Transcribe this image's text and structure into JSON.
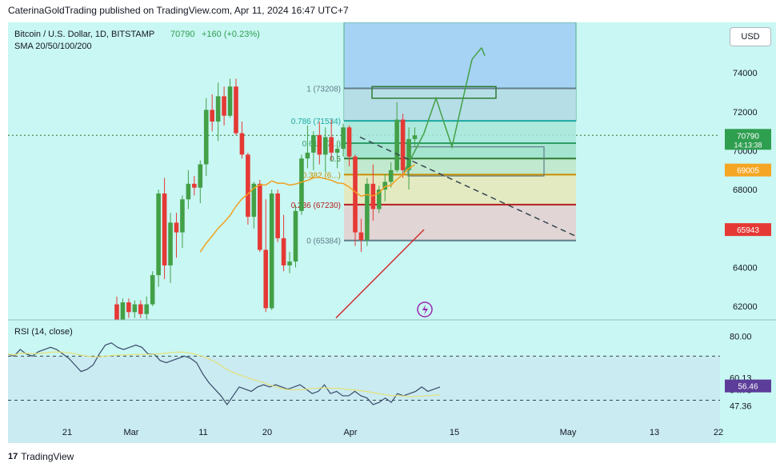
{
  "publisher": "CaterinaGoldTrading published on TradingView.com, Apr 11, 2024 16:47 UTC+7",
  "symbol_info": {
    "title": "Bitcoin / U.S. Dollar, 1D, BITSTAMP",
    "price": "70790",
    "change": "+160 (+0.23%)",
    "indicator": "SMA 20/50/100/200"
  },
  "currency_button": "USD",
  "rsi_title": "RSI (14, close)",
  "footer_brand": "TradingView",
  "footer_logo": "17",
  "colors": {
    "background": "#c9f7f3",
    "up": "#26a69a",
    "candle_up": "#43a047",
    "candle_down": "#e53935",
    "sma_orange": "#f0a020",
    "sma_red": "#d32f2f",
    "rsi_line": "#3a4a6b",
    "rsi_ma": "#e6e07a",
    "fib_green": "#2e9e6a",
    "projection_blue": "#9ecbf5"
  },
  "chart_data": {
    "type": "candlestick",
    "title": "Bitcoin / U.S. Dollar, 1D, BITSTAMP",
    "y_axis_ticks": [
      62000,
      64000,
      66000,
      68000,
      70000,
      72000,
      74000
    ],
    "y_tick_labels": [
      "62000",
      "64000",
      "66000",
      "68000",
      "70000",
      "72000",
      "74000"
    ],
    "ylim": [
      61300,
      76600
    ],
    "x_axis_labels": [
      "21",
      "Mar",
      "11",
      "20",
      "Apr",
      "15",
      "May",
      "13",
      "22"
    ],
    "price_labels": [
      {
        "text": "70790",
        "sub": "14:13:38",
        "value": 70790,
        "color": "#2e9e4f"
      },
      {
        "text": "69005",
        "value": 69005,
        "color": "#f5a623"
      },
      {
        "text": "65943",
        "value": 65943,
        "color": "#e53935"
      }
    ],
    "fib_levels": [
      {
        "label": "1 (73208)",
        "value": 73208
      },
      {
        "label": "0.786 (71534)",
        "value": 71534
      },
      {
        "label": "0.618 (7...)",
        "value": 70390
      },
      {
        "label": "0.5",
        "value": 69600
      },
      {
        "label": "0.382 (6...)",
        "value": 68770
      },
      {
        "label": "0.236 (67230)",
        "value": 67230
      },
      {
        "label": "0 (65384)",
        "value": 65384
      }
    ],
    "candles": [
      {
        "o": 62100,
        "h": 62500,
        "l": 61300,
        "c": 61300
      },
      {
        "o": 61300,
        "h": 62400,
        "l": 61300,
        "c": 62200
      },
      {
        "o": 62200,
        "h": 62400,
        "l": 61400,
        "c": 61700
      },
      {
        "o": 61700,
        "h": 62300,
        "l": 61400,
        "c": 62100
      },
      {
        "o": 62100,
        "h": 62300,
        "l": 61400,
        "c": 61600
      },
      {
        "o": 61600,
        "h": 62500,
        "l": 61300,
        "c": 62100
      },
      {
        "o": 62100,
        "h": 63800,
        "l": 62000,
        "c": 63600
      },
      {
        "o": 63600,
        "h": 68000,
        "l": 63000,
        "c": 67800
      },
      {
        "o": 67800,
        "h": 68600,
        "l": 63400,
        "c": 64100
      },
      {
        "o": 64100,
        "h": 66800,
        "l": 63200,
        "c": 66300
      },
      {
        "o": 66300,
        "h": 66800,
        "l": 64500,
        "c": 65800
      },
      {
        "o": 65800,
        "h": 67700,
        "l": 65000,
        "c": 67500
      },
      {
        "o": 67500,
        "h": 69000,
        "l": 67000,
        "c": 68300
      },
      {
        "o": 68300,
        "h": 68700,
        "l": 67700,
        "c": 68100
      },
      {
        "o": 68100,
        "h": 69500,
        "l": 67300,
        "c": 69300
      },
      {
        "o": 69300,
        "h": 72700,
        "l": 68700,
        "c": 72100
      },
      {
        "o": 72100,
        "h": 72900,
        "l": 71000,
        "c": 71500
      },
      {
        "o": 71500,
        "h": 73500,
        "l": 70500,
        "c": 72800
      },
      {
        "o": 72800,
        "h": 73300,
        "l": 71300,
        "c": 71800
      },
      {
        "o": 71800,
        "h": 73700,
        "l": 71700,
        "c": 73300
      },
      {
        "o": 73300,
        "h": 73700,
        "l": 70800,
        "c": 70900
      },
      {
        "o": 70900,
        "h": 71500,
        "l": 69600,
        "c": 69800
      },
      {
        "o": 69800,
        "h": 69900,
        "l": 66200,
        "c": 66600
      },
      {
        "o": 66600,
        "h": 68400,
        "l": 66000,
        "c": 68300
      },
      {
        "o": 68300,
        "h": 68500,
        "l": 64800,
        "c": 64900
      },
      {
        "o": 64900,
        "h": 67500,
        "l": 61700,
        "c": 61900
      },
      {
        "o": 61900,
        "h": 68000,
        "l": 61800,
        "c": 67800
      },
      {
        "o": 67800,
        "h": 68000,
        "l": 65300,
        "c": 65500
      },
      {
        "o": 65500,
        "h": 66700,
        "l": 63800,
        "c": 64100
      },
      {
        "o": 64100,
        "h": 64800,
        "l": 63700,
        "c": 64300
      },
      {
        "o": 64300,
        "h": 67200,
        "l": 64000,
        "c": 66900
      },
      {
        "o": 66900,
        "h": 69800,
        "l": 66700,
        "c": 69600
      },
      {
        "o": 69600,
        "h": 71300,
        "l": 69100,
        "c": 69900
      },
      {
        "o": 69900,
        "h": 71000,
        "l": 69000,
        "c": 70800
      },
      {
        "o": 70800,
        "h": 71500,
        "l": 69300,
        "c": 69800
      },
      {
        "o": 69800,
        "h": 71200,
        "l": 68900,
        "c": 70700
      },
      {
        "o": 70700,
        "h": 71600,
        "l": 69500,
        "c": 69900
      },
      {
        "o": 69900,
        "h": 70500,
        "l": 69100,
        "c": 70100
      },
      {
        "o": 70100,
        "h": 71400,
        "l": 69700,
        "c": 71200
      },
      {
        "o": 71200,
        "h": 71300,
        "l": 69200,
        "c": 69700
      },
      {
        "o": 69700,
        "h": 69800,
        "l": 65100,
        "c": 65800
      },
      {
        "o": 65800,
        "h": 66500,
        "l": 64800,
        "c": 65400
      },
      {
        "o": 65400,
        "h": 68600,
        "l": 65100,
        "c": 68300
      },
      {
        "o": 68300,
        "h": 69300,
        "l": 66400,
        "c": 67000
      },
      {
        "o": 67000,
        "h": 68200,
        "l": 66800,
        "c": 68000
      },
      {
        "o": 68000,
        "h": 68800,
        "l": 67400,
        "c": 68400
      },
      {
        "o": 68400,
        "h": 69400,
        "l": 68100,
        "c": 69000
      },
      {
        "o": 69000,
        "h": 72500,
        "l": 68900,
        "c": 71600
      },
      {
        "o": 71600,
        "h": 71900,
        "l": 68600,
        "c": 69000
      },
      {
        "o": 69000,
        "h": 71200,
        "l": 68000,
        "c": 70600
      },
      {
        "o": 70600,
        "h": 71200,
        "l": 70200,
        "c": 70790
      }
    ],
    "rsi": {
      "title": "RSI (14, close)",
      "levels": [
        "80.00",
        "60.13",
        "54.78",
        "47.36"
      ],
      "current": "56.46",
      "values": [
        71,
        70,
        73,
        71,
        70,
        72,
        73,
        74,
        73,
        71,
        69,
        66,
        63,
        64,
        66,
        71,
        75,
        76,
        74,
        73,
        74,
        75,
        74,
        71,
        71,
        68,
        67,
        68,
        69,
        70,
        69,
        67,
        62,
        58,
        55,
        52,
        48,
        52,
        56,
        55,
        54,
        56,
        57,
        56,
        57,
        56,
        55,
        56,
        57,
        55,
        53,
        54,
        57,
        53,
        54,
        52,
        52,
        54,
        52,
        51,
        48,
        49,
        51,
        49,
        53,
        52,
        53,
        54,
        56,
        54,
        55,
        56
      ]
    }
  }
}
